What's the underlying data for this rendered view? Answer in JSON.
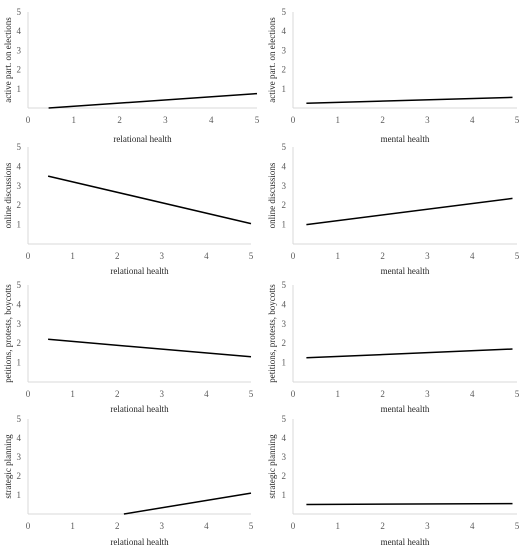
{
  "chart_data": [
    {
      "type": "line",
      "xlabel": "relational health",
      "ylabel": "active part. on elections",
      "xlim": [
        0,
        5
      ],
      "ylim": [
        0,
        5
      ],
      "x_ticks": [
        "0",
        "1",
        "2",
        "3",
        "4",
        "5"
      ],
      "y_ticks": [
        "1",
        "2",
        "3",
        "4",
        "5"
      ],
      "grid": false,
      "series": [
        {
          "x": [
            0.45,
            5
          ],
          "y": [
            0.0,
            0.75
          ]
        }
      ]
    },
    {
      "type": "line",
      "xlabel": "mental health",
      "ylabel": "active part. on elections",
      "xlim": [
        0,
        5
      ],
      "ylim": [
        0,
        5
      ],
      "x_ticks": [
        "0",
        "1",
        "2",
        "3",
        "4",
        "5"
      ],
      "y_ticks": [
        "1",
        "2",
        "3",
        "4",
        "5"
      ],
      "grid": false,
      "series": [
        {
          "x": [
            0.3,
            4.9
          ],
          "y": [
            0.25,
            0.55
          ]
        }
      ]
    },
    {
      "type": "line",
      "xlabel": "relational health",
      "ylabel": "online discussions",
      "xlim": [
        0,
        5
      ],
      "ylim": [
        0,
        5
      ],
      "x_ticks": [
        "0",
        "1",
        "2",
        "3",
        "4",
        "5"
      ],
      "y_ticks": [
        "1",
        "2",
        "3",
        "4",
        "5"
      ],
      "grid": false,
      "series": [
        {
          "x": [
            0.45,
            5
          ],
          "y": [
            3.5,
            1.05
          ]
        }
      ]
    },
    {
      "type": "line",
      "xlabel": "mental health",
      "ylabel": "online discussions",
      "xlim": [
        0,
        5
      ],
      "ylim": [
        0,
        5
      ],
      "x_ticks": [
        "0",
        "1",
        "2",
        "3",
        "4",
        "5"
      ],
      "y_ticks": [
        "1",
        "2",
        "3",
        "4",
        "5"
      ],
      "grid": false,
      "series": [
        {
          "x": [
            0.3,
            4.9
          ],
          "y": [
            1.0,
            2.35
          ]
        }
      ]
    },
    {
      "type": "line",
      "xlabel": "relational health",
      "ylabel": "petitions, protests, boycotts",
      "xlim": [
        0,
        5
      ],
      "ylim": [
        0,
        5
      ],
      "x_ticks": [
        "0",
        "1",
        "2",
        "3",
        "4",
        "5"
      ],
      "y_ticks": [
        "1",
        "2",
        "3",
        "4",
        "5"
      ],
      "grid": false,
      "series": [
        {
          "x": [
            0.45,
            5
          ],
          "y": [
            2.2,
            1.3
          ]
        }
      ]
    },
    {
      "type": "line",
      "xlabel": "mental health",
      "ylabel": "petitions, protests, boycotts",
      "xlim": [
        0,
        5
      ],
      "ylim": [
        0,
        5
      ],
      "x_ticks": [
        "0",
        "1",
        "2",
        "3",
        "4",
        "5"
      ],
      "y_ticks": [
        "1",
        "2",
        "3",
        "4",
        "5"
      ],
      "grid": false,
      "series": [
        {
          "x": [
            0.3,
            4.9
          ],
          "y": [
            1.25,
            1.7
          ]
        }
      ]
    },
    {
      "type": "line",
      "xlabel": "relational health",
      "ylabel": "strategic planning",
      "xlim": [
        0,
        5
      ],
      "ylim": [
        0,
        5
      ],
      "x_ticks": [
        "0",
        "1",
        "2",
        "3",
        "4",
        "5"
      ],
      "y_ticks": [
        "1",
        "2",
        "3",
        "4",
        "5"
      ],
      "grid": false,
      "series": [
        {
          "x": [
            2.15,
            5
          ],
          "y": [
            0.0,
            1.1
          ]
        }
      ]
    },
    {
      "type": "line",
      "xlabel": "mental health",
      "ylabel": "strategic planning",
      "xlim": [
        0,
        5
      ],
      "ylim": [
        0,
        5
      ],
      "x_ticks": [
        "0",
        "1",
        "2",
        "3",
        "4",
        "5"
      ],
      "y_ticks": [
        "1",
        "2",
        "3",
        "4",
        "5"
      ],
      "grid": false,
      "series": [
        {
          "x": [
            0.3,
            4.9
          ],
          "y": [
            0.5,
            0.55
          ]
        }
      ]
    }
  ]
}
